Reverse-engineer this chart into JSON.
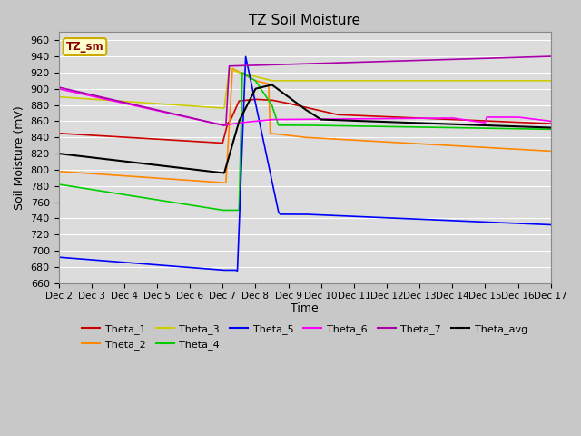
{
  "title": "TZ Soil Moisture",
  "xlabel": "Time",
  "ylabel": "Soil Moisture (mV)",
  "ylim": [
    660,
    970
  ],
  "xlim": [
    0,
    15
  ],
  "yticks": [
    660,
    680,
    700,
    720,
    740,
    760,
    780,
    800,
    820,
    840,
    860,
    880,
    900,
    920,
    940,
    960
  ],
  "xtick_labels": [
    "Dec 2",
    "Dec 3",
    "Dec 4",
    "Dec 5",
    "Dec 6",
    "Dec 7",
    "Dec 8",
    "Dec 9",
    "Dec 10",
    "Dec 11",
    "Dec 12",
    "Dec 13",
    "Dec 14",
    "Dec 15",
    "Dec 16",
    "Dec 17"
  ],
  "fig_bg_color": "#c8c8c8",
  "plot_bg_color": "#dcdcdc",
  "grid_color": "#ffffff",
  "label_box": {
    "text": "TZ_sm",
    "bg": "#ffffcc",
    "edge": "#ccaa00",
    "text_color": "#880000"
  },
  "series": {
    "Theta_1": {
      "color": "#cc0000",
      "linewidth": 1.2
    },
    "Theta_2": {
      "color": "#ff8800",
      "linewidth": 1.2
    },
    "Theta_3": {
      "color": "#cccc00",
      "linewidth": 1.2
    },
    "Theta_4": {
      "color": "#00cc00",
      "linewidth": 1.2
    },
    "Theta_5": {
      "color": "#0000ff",
      "linewidth": 1.2
    },
    "Theta_6": {
      "color": "#ff00ff",
      "linewidth": 1.2
    },
    "Theta_7": {
      "color": "#aa00aa",
      "linewidth": 1.2
    },
    "Theta_avg": {
      "color": "#000000",
      "linewidth": 1.5
    }
  }
}
